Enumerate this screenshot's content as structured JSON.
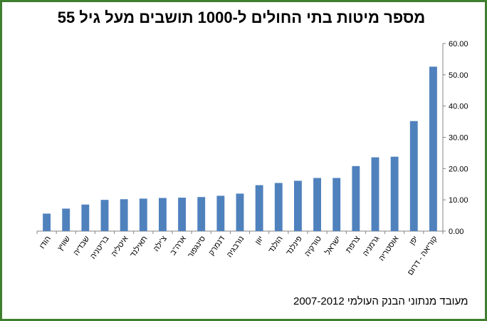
{
  "chart_data": {
    "type": "bar",
    "title": "מספר מיטות בתי החולים ל-1000 תושבים מעל גיל 55",
    "footer": "מעובד מנתוני הבנק העולמי 2007-2012",
    "categories": [
      "הודו",
      "שוויץ",
      "שבדיה",
      "בריטניה",
      "איטליה",
      "תאילנד",
      "צ'ילה",
      "ארה\"ב",
      "סינגפור",
      "דנמרק",
      "נורבגיה",
      "יוון",
      "הולנד",
      "פינלנד",
      "טורקיה",
      "ישראל",
      "צרפת",
      "גרמניה",
      "אוסטריה",
      "יפן",
      "קוריאה - דרום"
    ],
    "values": [
      5.6,
      7.2,
      8.5,
      10.0,
      10.2,
      10.4,
      10.6,
      10.7,
      10.9,
      11.3,
      12.0,
      14.7,
      15.4,
      16.1,
      17.0,
      17.0,
      20.8,
      23.6,
      23.8,
      35.2,
      52.6
    ],
    "ylim": [
      0,
      60
    ],
    "yticks": [
      "0.00",
      "10.00",
      "20.00",
      "30.00",
      "40.00",
      "50.00",
      "60.00"
    ],
    "ytick_values": [
      0,
      10,
      20,
      30,
      40,
      50,
      60
    ],
    "grid": false,
    "bar_color": "#4f81bd",
    "frame_color": "#3f7f2f"
  }
}
